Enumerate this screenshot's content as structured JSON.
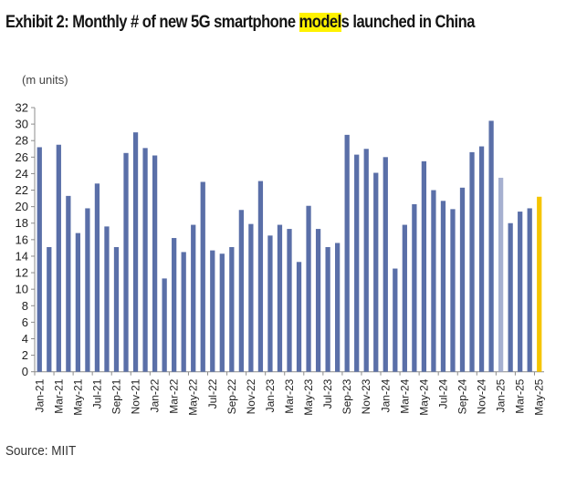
{
  "title": {
    "prefix": "Exhibit 2: Monthly # of new 5G smartphone ",
    "highlight": "model",
    "suffix": "s launched in China"
  },
  "source": "Source: MIIT",
  "colors": {
    "bar": "#5a6fa8",
    "bar_estimate": "#a6b0d0",
    "bar_latest": "#f5c400",
    "axis": "#8c8c8c",
    "highlight": "#fff200"
  },
  "chart_data": {
    "type": "bar",
    "title": "Exhibit 2: Monthly # of new 5G smartphone models launched in China",
    "xlabel": "",
    "ylabel": "(m units)",
    "ylim": [
      0,
      32
    ],
    "yticks": [
      0,
      2,
      4,
      6,
      8,
      10,
      12,
      14,
      16,
      18,
      20,
      22,
      24,
      26,
      28,
      30,
      32
    ],
    "grid": false,
    "legend": "none",
    "categories": [
      "Jan-21",
      "Feb-21",
      "Mar-21",
      "Apr-21",
      "May-21",
      "Jun-21",
      "Jul-21",
      "Aug-21",
      "Sep-21",
      "Oct-21",
      "Nov-21",
      "Dec-21",
      "Jan-22",
      "Feb-22",
      "Mar-22",
      "Apr-22",
      "May-22",
      "Jun-22",
      "Jul-22",
      "Aug-22",
      "Sep-22",
      "Oct-22",
      "Nov-22",
      "Dec-22",
      "Jan-23",
      "Feb-23",
      "Mar-23",
      "Apr-23",
      "May-23",
      "Jun-23",
      "Jul-23",
      "Aug-23",
      "Sep-23",
      "Oct-23",
      "Nov-23",
      "Dec-23",
      "Jan-24",
      "Feb-24",
      "Mar-24",
      "Apr-24",
      "May-24",
      "Jun-24",
      "Jul-24",
      "Aug-24",
      "Sep-24",
      "Oct-24",
      "Nov-24",
      "Dec-24",
      "Jan-25",
      "Feb-25",
      "Mar-25",
      "Apr-25",
      "May-25"
    ],
    "xtick_labels_shown_every": 2,
    "values": [
      27.2,
      15.1,
      27.5,
      21.3,
      16.8,
      19.8,
      22.8,
      17.6,
      15.1,
      26.5,
      29.0,
      27.1,
      26.2,
      11.3,
      16.2,
      14.5,
      17.8,
      23.0,
      14.7,
      14.3,
      15.1,
      19.6,
      17.9,
      23.1,
      16.5,
      17.8,
      17.3,
      13.3,
      20.1,
      17.3,
      15.1,
      15.6,
      28.7,
      26.3,
      27.0,
      24.1,
      26.0,
      12.5,
      17.8,
      20.3,
      25.5,
      22.0,
      20.7,
      19.7,
      22.3,
      26.6,
      27.3,
      30.4,
      23.5,
      18.0,
      19.4,
      19.8,
      21.2
    ],
    "bar_styles": {
      "Jan-25": "estimate",
      "May-25": "latest"
    }
  }
}
